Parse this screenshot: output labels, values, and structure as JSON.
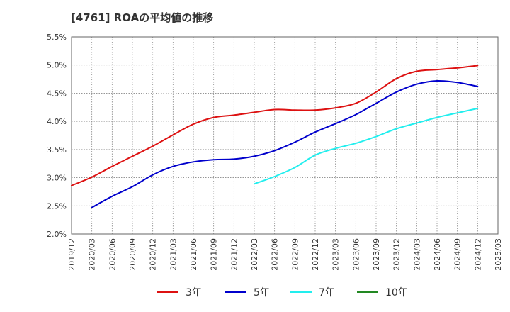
{
  "chart_data": {
    "type": "line",
    "title": "[4761]  ROAの平均値の推移",
    "xlabel": "",
    "ylabel": "",
    "ylim": [
      2.0,
      5.5
    ],
    "yticks": [
      "2.0%",
      "2.5%",
      "3.0%",
      "3.5%",
      "4.0%",
      "4.5%",
      "5.0%",
      "5.5%"
    ],
    "xticks": [
      "2019/12",
      "2020/03",
      "2020/06",
      "2020/09",
      "2020/12",
      "2021/03",
      "2021/06",
      "2021/09",
      "2021/12",
      "2022/03",
      "2022/06",
      "2022/09",
      "2022/12",
      "2023/03",
      "2023/06",
      "2023/09",
      "2023/12",
      "2024/03",
      "2024/06",
      "2024/09",
      "2024/12",
      "2025/03"
    ],
    "grid": true,
    "legend_position": "bottom",
    "series": [
      {
        "name": "3年",
        "color": "#dd1111",
        "x": [
          "2019/12",
          "2020/03",
          "2020/06",
          "2020/09",
          "2020/12",
          "2021/03",
          "2021/06",
          "2021/09",
          "2021/12",
          "2022/03",
          "2022/06",
          "2022/09",
          "2022/12",
          "2023/03",
          "2023/06",
          "2023/09",
          "2023/12",
          "2024/03",
          "2024/06",
          "2024/09",
          "2024/12"
        ],
        "values": [
          2.86,
          3.01,
          3.2,
          3.38,
          3.56,
          3.76,
          3.95,
          4.07,
          4.11,
          4.16,
          4.21,
          4.2,
          4.2,
          4.24,
          4.32,
          4.52,
          4.76,
          4.89,
          4.92,
          4.95,
          4.99
        ]
      },
      {
        "name": "5年",
        "color": "#0000cc",
        "x": [
          "2020/03",
          "2020/06",
          "2020/09",
          "2020/12",
          "2021/03",
          "2021/06",
          "2021/09",
          "2021/12",
          "2022/03",
          "2022/06",
          "2022/09",
          "2022/12",
          "2023/03",
          "2023/06",
          "2023/09",
          "2023/12",
          "2024/03",
          "2024/06",
          "2024/09",
          "2024/12"
        ],
        "values": [
          2.47,
          2.67,
          2.84,
          3.05,
          3.2,
          3.28,
          3.32,
          3.33,
          3.38,
          3.48,
          3.63,
          3.81,
          3.96,
          4.12,
          4.32,
          4.52,
          4.66,
          4.72,
          4.69,
          4.62
        ]
      },
      {
        "name": "7年",
        "color": "#22eeee",
        "x": [
          "2022/03",
          "2022/06",
          "2022/09",
          "2022/12",
          "2023/03",
          "2023/06",
          "2023/09",
          "2023/12",
          "2024/03",
          "2024/06",
          "2024/09",
          "2024/12"
        ],
        "values": [
          2.89,
          3.02,
          3.18,
          3.4,
          3.52,
          3.61,
          3.73,
          3.87,
          3.97,
          4.07,
          4.15,
          4.23
        ]
      },
      {
        "name": "10年",
        "color": "#228822",
        "x": [],
        "values": []
      }
    ]
  }
}
